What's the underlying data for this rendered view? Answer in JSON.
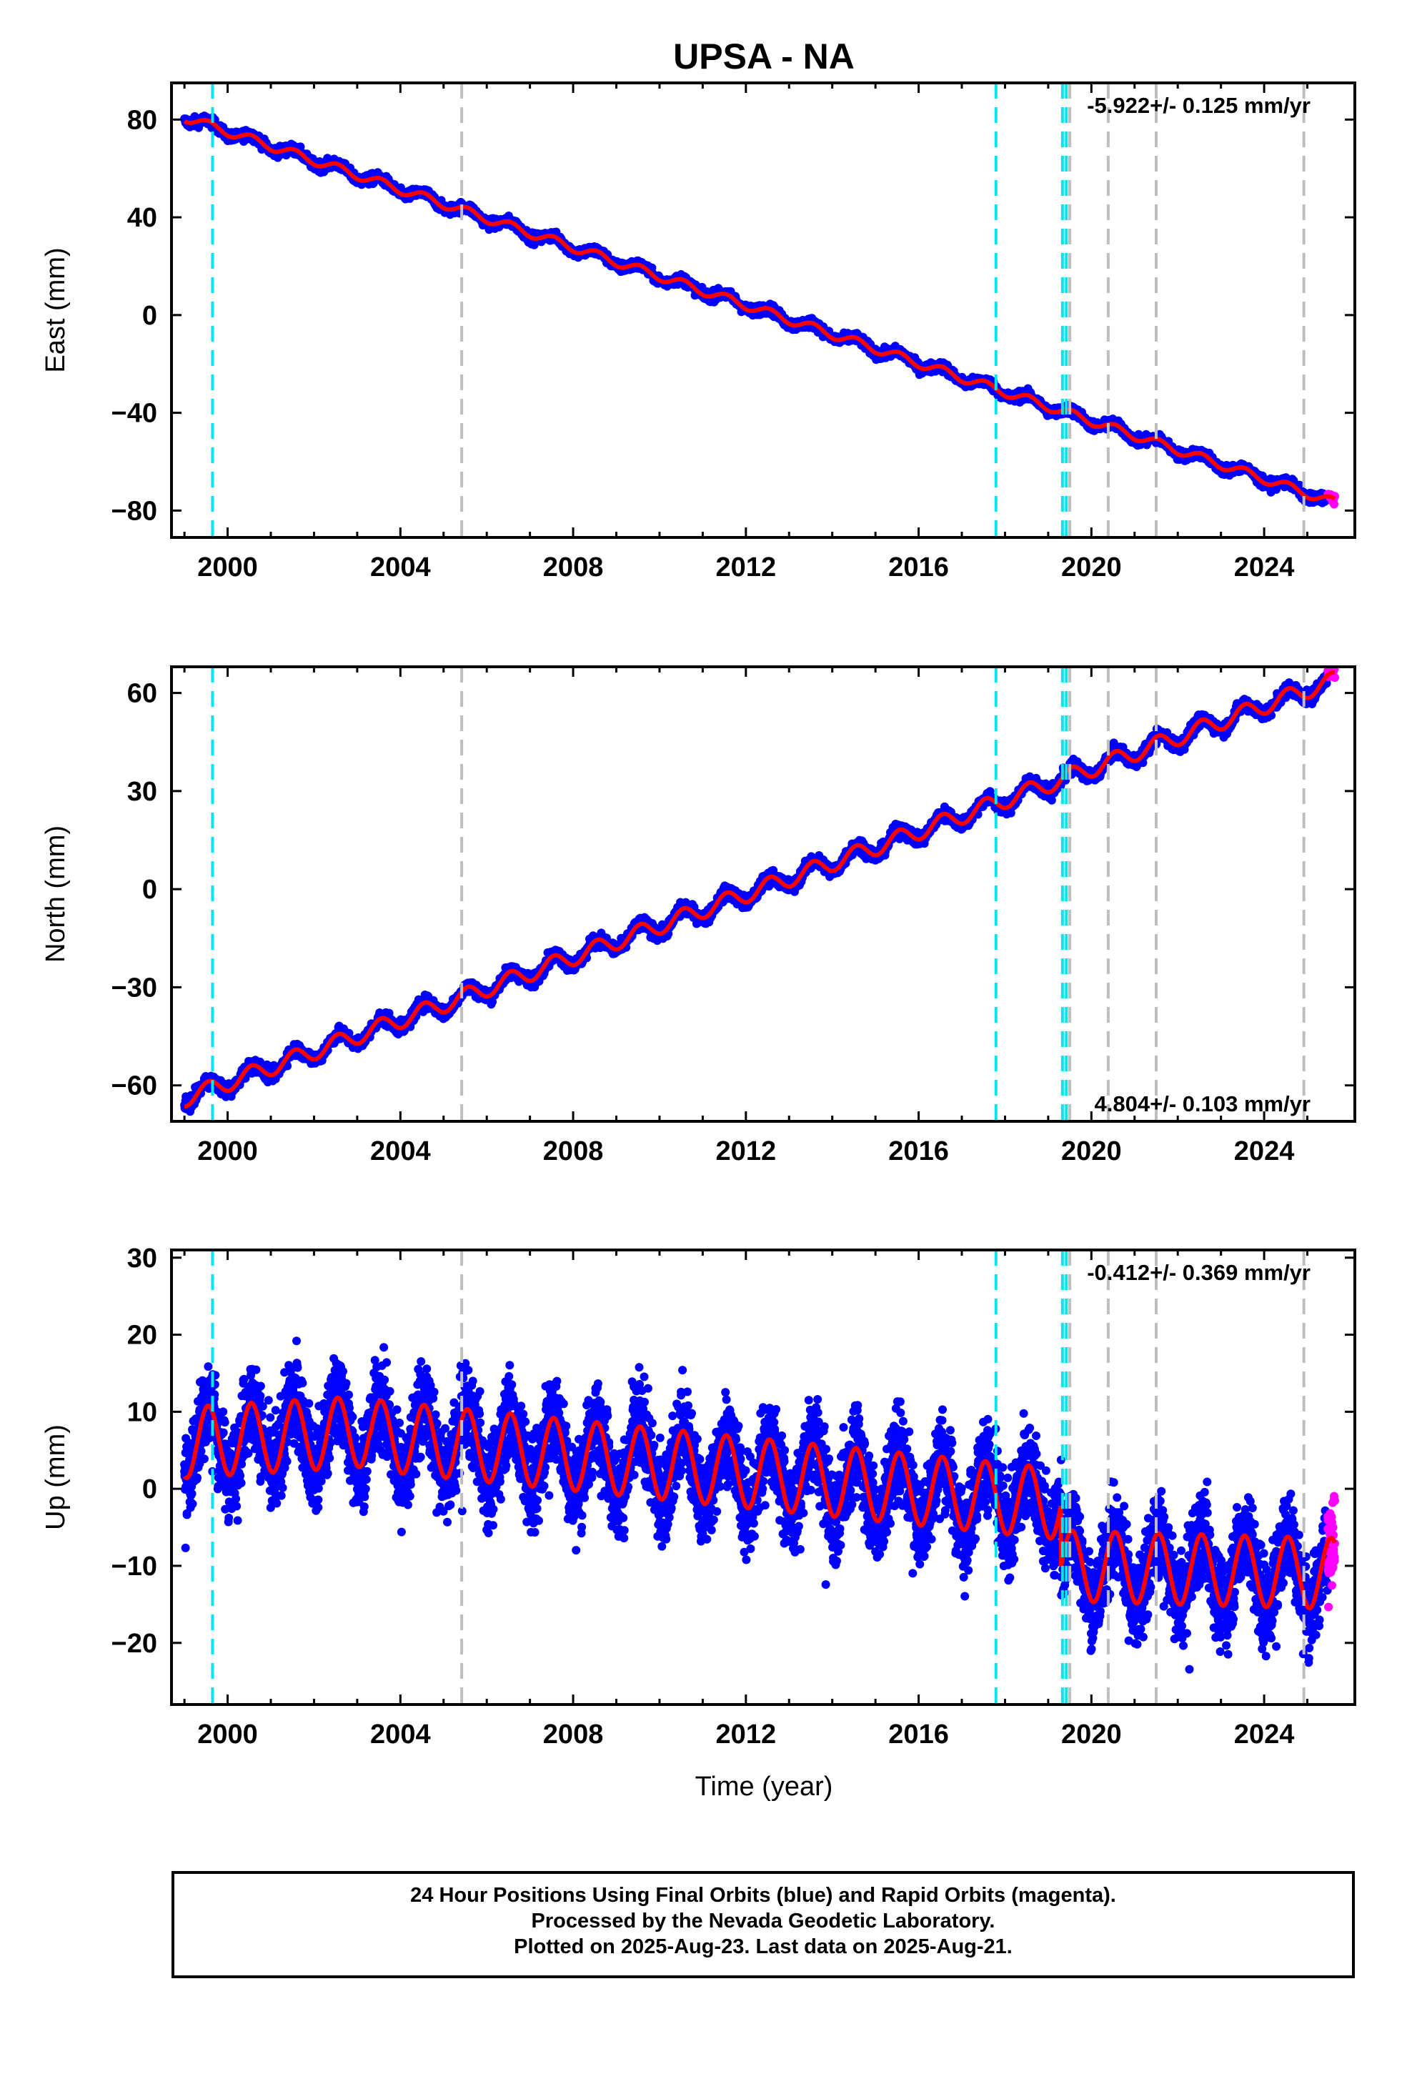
{
  "title": "UPSA - NA",
  "x_label": "Time (year)",
  "footer": {
    "line1": "24 Hour Positions Using Final Orbits (blue) and Rapid Orbits (magenta).",
    "line2": "Processed by the Nevada Geodetic Laboratory.",
    "line3": "Plotted on 2025-Aug-23. Last data on 2025-Aug-21."
  },
  "colors": {
    "final_orbits": "#0000ff",
    "rapid_orbits": "#ff00ff",
    "model_fit": "#ff0000",
    "equipment_change": "#00e5ee",
    "other_event": "#bebebe"
  },
  "chart_data": [
    {
      "type": "scatter",
      "panel": "East",
      "ylabel": "East (mm)",
      "xlim": [
        1998.7,
        2026.1
      ],
      "ylim": [
        -91,
        95
      ],
      "x_ticks": [
        2000,
        2004,
        2008,
        2012,
        2016,
        2020,
        2024
      ],
      "y_ticks": [
        -80,
        -40,
        0,
        40,
        80
      ],
      "annotation": "-5.922+/- 0.125 mm/yr",
      "annotation_position": "top-right",
      "data_start": 1999.0,
      "data_end": 2025.64,
      "rapid_start": 2025.47,
      "trend": {
        "value_at_start": 81.0,
        "rate_mm_per_yr": -5.922
      },
      "seasonal_amplitude": 1.8,
      "noise": 1.5,
      "cyan_lines": [
        1999.65,
        2017.79,
        2019.33,
        2019.42
      ],
      "gray_lines": [
        2005.42,
        2019.5,
        2020.39,
        2021.5,
        2024.92
      ]
    },
    {
      "type": "scatter",
      "panel": "North",
      "ylabel": "North (mm)",
      "xlim": [
        1998.7,
        2026.1
      ],
      "ylim": [
        -71,
        68
      ],
      "x_ticks": [
        2000,
        2004,
        2008,
        2012,
        2016,
        2020,
        2024
      ],
      "y_ticks": [
        -60,
        -30,
        0,
        30,
        60
      ],
      "annotation": "4.804+/- 0.103 mm/yr",
      "annotation_position": "bottom-right",
      "data_start": 1999.0,
      "data_end": 2025.64,
      "rapid_start": 2025.47,
      "trend": {
        "value_at_start": -64.0,
        "rate_mm_per_yr": 4.804
      },
      "seasonal_amplitude": 2.6,
      "noise": 1.5,
      "cyan_lines": [
        1999.65,
        2017.79,
        2019.33,
        2019.42
      ],
      "gray_lines": [
        2005.42,
        2019.5,
        2020.39,
        2021.5,
        2024.92
      ]
    },
    {
      "type": "scatter",
      "panel": "Up",
      "ylabel": "Up (mm)",
      "xlim": [
        1998.7,
        2026.1
      ],
      "ylim": [
        -28,
        31
      ],
      "x_ticks": [
        2000,
        2004,
        2008,
        2012,
        2016,
        2020,
        2024
      ],
      "y_ticks": [
        -20,
        -10,
        0,
        10,
        20,
        30
      ],
      "annotation": "-0.412+/- 0.369 mm/yr",
      "annotation_position": "top-right",
      "data_start": 1999.0,
      "data_end": 2025.64,
      "rapid_start": 2025.47,
      "trend": {
        "value_at_start": 6.0,
        "rate_mm_per_yr": -0.412
      },
      "segments": [
        {
          "start": 1999.0,
          "end": 2003.3,
          "center": [
            6.0,
            7.5
          ]
        },
        {
          "start": 2003.3,
          "end": 2019.3,
          "center": [
            7.0,
            -2.0
          ]
        },
        {
          "start": 2019.3,
          "end": 2025.64,
          "center": [
            -10.0,
            -11.0
          ]
        }
      ],
      "seasonal_amplitude": 4.6,
      "noise": 4.0,
      "cyan_lines": [
        1999.65,
        2017.79,
        2019.33,
        2019.42
      ],
      "gray_lines": [
        2005.42,
        2019.5,
        2020.39,
        2021.5,
        2024.92
      ]
    }
  ]
}
